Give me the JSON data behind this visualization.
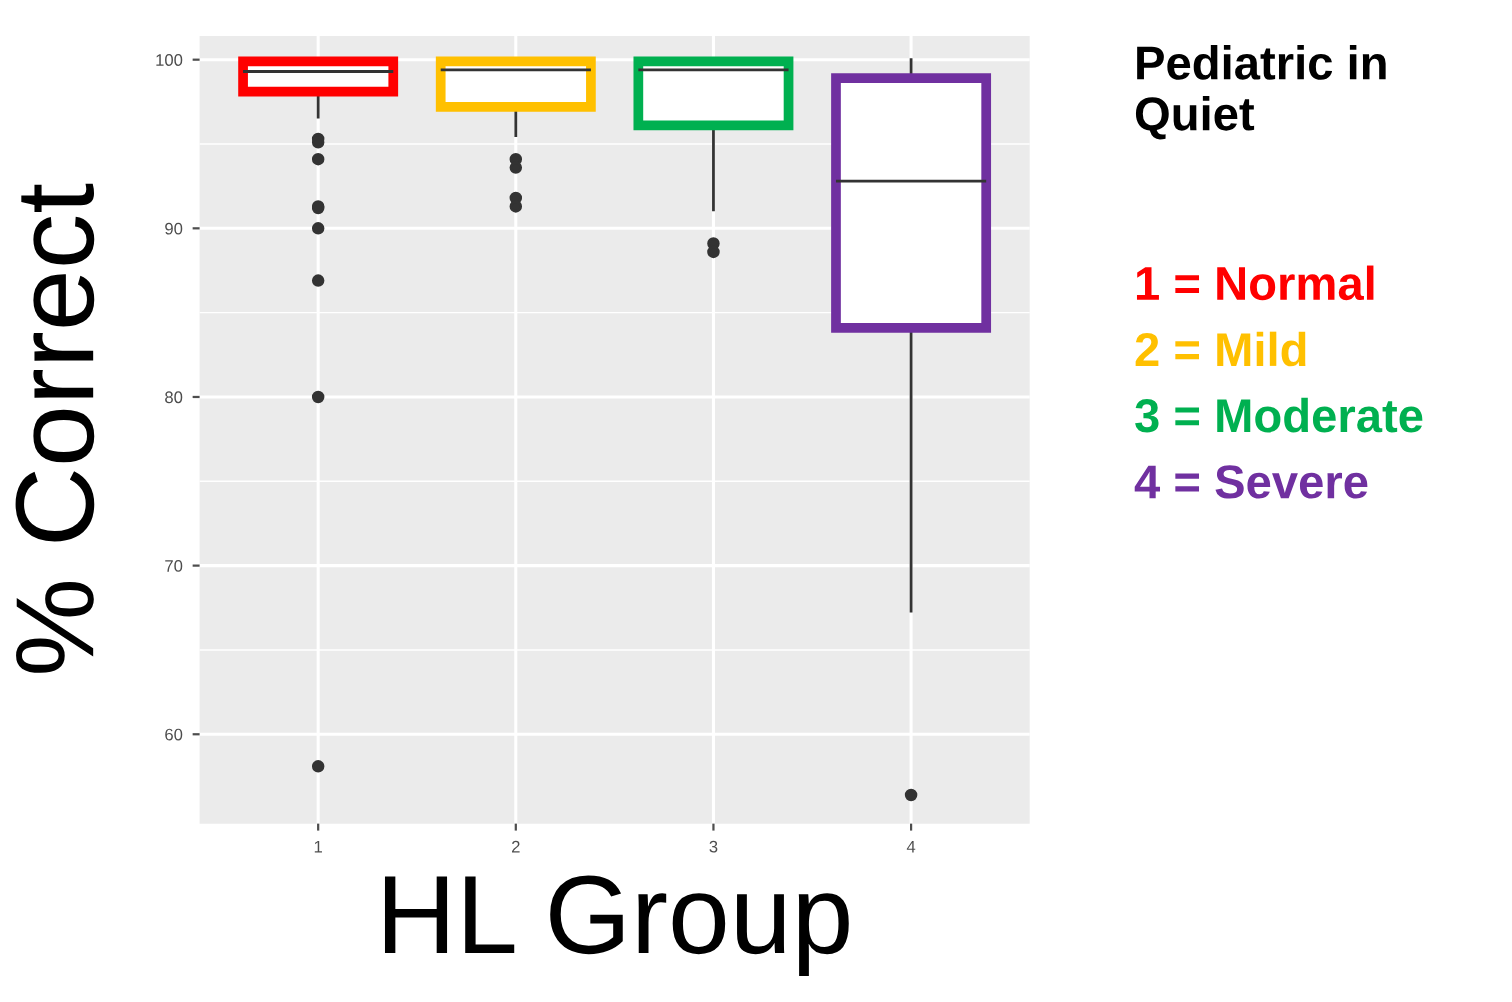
{
  "chart_data": {
    "type": "box",
    "title": "Pediatric in Quiet",
    "xlabel": "HL Group",
    "ylabel": "% Correct",
    "categories": [
      "1",
      "2",
      "3",
      "4"
    ],
    "colors": [
      "#ff0000",
      "#ffc000",
      "#00b050",
      "#7030a0"
    ],
    "boxes": [
      {
        "low": 96.6,
        "q1": 98.1,
        "median": 99.3,
        "q3": 99.9,
        "high": 100,
        "outliers": [
          95.3,
          95.1,
          94.1,
          91.3,
          91.2,
          90.0,
          86.9,
          80.0,
          58.1
        ]
      },
      {
        "low": 95.5,
        "q1": 97.2,
        "median": 99.4,
        "q3": 99.9,
        "high": 100,
        "outliers": [
          94.1,
          93.6,
          91.8,
          91.3
        ]
      },
      {
        "low": 91.1,
        "q1": 96.1,
        "median": 99.4,
        "q3": 99.9,
        "high": 100,
        "outliers": [
          89.1,
          88.6
        ]
      },
      {
        "low": 67.3,
        "q1": 84.1,
        "median": 92.8,
        "q3": 98.9,
        "high": 100,
        "outliers": [
          56.4
        ]
      }
    ],
    "ylim": [
      54.7,
      101.4
    ],
    "yticks": [
      60,
      70,
      80,
      90,
      100
    ],
    "grid": true,
    "annotations": [
      "1 = Normal",
      "2 = Mild",
      "3 = Moderate",
      "4 = Severe"
    ]
  }
}
